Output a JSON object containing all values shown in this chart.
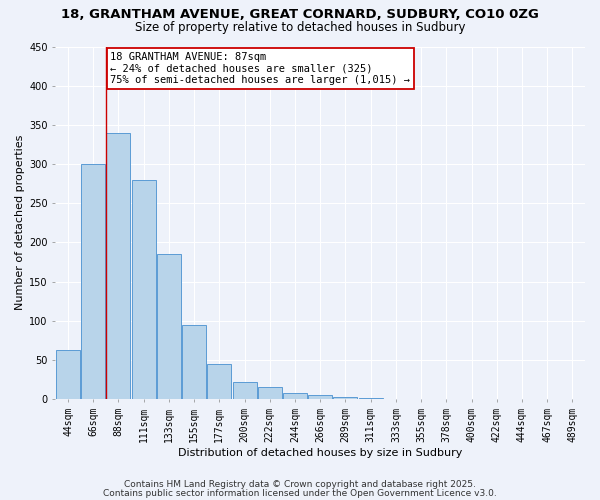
{
  "title1": "18, GRANTHAM AVENUE, GREAT CORNARD, SUDBURY, CO10 0ZG",
  "title2": "Size of property relative to detached houses in Sudbury",
  "xlabel": "Distribution of detached houses by size in Sudbury",
  "ylabel": "Number of detached properties",
  "bar_labels": [
    "44sqm",
    "66sqm",
    "88sqm",
    "111sqm",
    "133sqm",
    "155sqm",
    "177sqm",
    "200sqm",
    "222sqm",
    "244sqm",
    "266sqm",
    "289sqm",
    "311sqm",
    "333sqm",
    "355sqm",
    "378sqm",
    "400sqm",
    "422sqm",
    "444sqm",
    "467sqm",
    "489sqm"
  ],
  "bar_values": [
    63,
    300,
    340,
    280,
    185,
    95,
    45,
    22,
    15,
    8,
    5,
    2,
    1,
    0.5,
    0.3,
    0.2,
    0.15,
    0.1,
    0.08,
    0.05,
    0.03
  ],
  "bar_color": "#b8d4ea",
  "bar_edge_color": "#5b9bd5",
  "red_line_index": 2,
  "annotation_title": "18 GRANTHAM AVENUE: 87sqm",
  "annotation_line1": "← 24% of detached houses are smaller (325)",
  "annotation_line2": "75% of semi-detached houses are larger (1,015) →",
  "annotation_box_color": "#ffffff",
  "annotation_box_edge": "#cc0000",
  "red_line_color": "#cc0000",
  "ylim": [
    0,
    450
  ],
  "yticks": [
    0,
    50,
    100,
    150,
    200,
    250,
    300,
    350,
    400,
    450
  ],
  "footnote1": "Contains HM Land Registry data © Crown copyright and database right 2025.",
  "footnote2": "Contains public sector information licensed under the Open Government Licence v3.0.",
  "bg_color": "#eef2fa",
  "grid_color": "#ffffff",
  "title_fontsize": 9.5,
  "subtitle_fontsize": 8.5,
  "axis_label_fontsize": 8,
  "tick_fontsize": 7,
  "annotation_fontsize": 7.5,
  "footnote_fontsize": 6.5
}
